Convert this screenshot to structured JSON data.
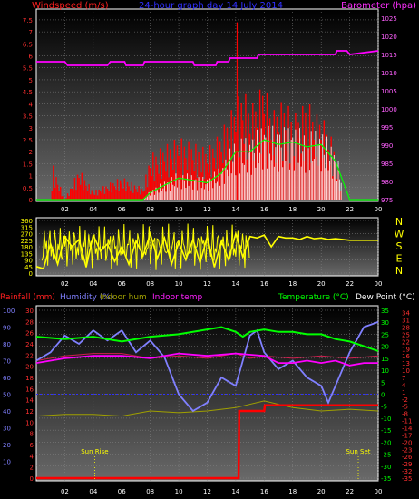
{
  "chart_data": [
    {
      "type": "line",
      "title": "24-hour graph day   14 July 2014",
      "left_axis_label": "Windspeed (m/s)",
      "right_axis_label": "Barometer (hpa)",
      "x_ticks": [
        "02",
        "04",
        "06",
        "08",
        "10",
        "12",
        "14",
        "16",
        "18",
        "20",
        "22",
        "00"
      ],
      "left_ticks": [
        "0",
        "0.5",
        "1",
        "1.5",
        "2",
        "2.5",
        "3",
        "3.5",
        "4",
        "4.5",
        "5",
        "5.5",
        "6",
        "6.5",
        "7",
        "7.5"
      ],
      "right_ticks": [
        "975",
        "980",
        "985",
        "990",
        "995",
        "1000",
        "1005",
        "1010",
        "1015",
        "1020",
        "1025"
      ],
      "ylim_left": [
        0,
        7.8
      ],
      "ylim_right": [
        975,
        1025
      ],
      "colors": {
        "wind": "#ff0000",
        "gust": "#ffffff",
        "avg": "#00ff00",
        "baro": "#ff00ff"
      },
      "series": [
        {
          "name": "barometer",
          "x": [
            0,
            2,
            2.2,
            5,
            5.2,
            6.2,
            6.3,
            7.5,
            7.6,
            11,
            11.1,
            12.6,
            12.7,
            13.5,
            13.6,
            15.5,
            15.6,
            20,
            20.1,
            21,
            21.1,
            21.8,
            22,
            24
          ],
          "values": [
            1013,
            1013,
            1012,
            1012,
            1013,
            1013,
            1012,
            1012,
            1013,
            1013,
            1012,
            1012,
            1013,
            1013,
            1014,
            1014,
            1015,
            1015,
            1015,
            1015,
            1016,
            1016,
            1015,
            1016
          ]
        },
        {
          "name": "windspeed",
          "x": [
            0,
            1,
            1.2,
            2,
            3,
            4,
            6,
            7.5,
            8,
            9,
            10,
            11,
            12,
            13,
            13.5,
            14,
            14.5,
            15,
            15.5,
            16,
            16.5,
            17,
            17.5,
            18,
            18.5,
            19,
            19.5,
            20,
            20.5,
            21,
            21.5,
            22,
            24
          ],
          "values": [
            0,
            0,
            1.2,
            0,
            1.1,
            0.3,
            0.8,
            0.4,
            1.6,
            1.9,
            2.2,
            2.0,
            1.8,
            2.4,
            3.0,
            3.4,
            4.0,
            3.3,
            3.6,
            4.3,
            3.0,
            3.4,
            3.5,
            3.0,
            3.1,
            3.6,
            3.0,
            3.0,
            2.5,
            1.8,
            0,
            0,
            0
          ]
        },
        {
          "name": "avg",
          "x": [
            0,
            2,
            4,
            6,
            7.5,
            8,
            9,
            10,
            11,
            12,
            13,
            14,
            15,
            16,
            17,
            18,
            19,
            20,
            21,
            22,
            24
          ],
          "values": [
            0,
            0,
            0,
            0,
            0,
            0.3,
            0.6,
            0.9,
            0.8,
            0.7,
            1.1,
            2.0,
            2.0,
            2.5,
            2.3,
            2.4,
            2.2,
            2.3,
            1.6,
            0,
            0
          ]
        }
      ]
    },
    {
      "type": "line",
      "title": "",
      "right_axis_label": "",
      "compass_labels": [
        "N",
        "W",
        "S",
        "E",
        "N"
      ],
      "x_ticks": [
        "02",
        "04",
        "06",
        "08",
        "10",
        "12",
        "14",
        "16",
        "18",
        "20",
        "22",
        "00"
      ],
      "left_ticks": [
        "0",
        "45",
        "90",
        "135",
        "180",
        "225",
        "270",
        "315",
        "360"
      ],
      "ylim": [
        0,
        360
      ],
      "colors": {
        "direction": "#ffff00"
      },
      "series": [
        {
          "name": "wind direction",
          "x": [
            0,
            0.5,
            1,
            1.5,
            2,
            2.5,
            3,
            3.5,
            4,
            4.5,
            5,
            5.5,
            6,
            6.5,
            7,
            7.5,
            8,
            8.5,
            9,
            9.5,
            10,
            10.5,
            11,
            11.5,
            12,
            12.5,
            13,
            13.5,
            14,
            14.5,
            15,
            15.5,
            16,
            16.5,
            17,
            17.5,
            18,
            18.5,
            19,
            19.5,
            20,
            20.5,
            21,
            21.5,
            22,
            24
          ],
          "values": [
            45,
            30,
            200,
            60,
            250,
            180,
            230,
            40,
            260,
            150,
            200,
            80,
            180,
            60,
            220,
            120,
            270,
            100,
            240,
            60,
            210,
            90,
            230,
            70,
            250,
            40,
            220,
            90,
            270,
            110,
            250,
            240,
            260,
            180,
            250,
            240,
            240,
            230,
            250,
            235,
            240,
            230,
            235,
            230,
            225,
            225
          ]
        }
      ]
    },
    {
      "type": "line",
      "legend": [
        "Rainfall (mm)",
        "Humidity (%)",
        "Indoor hum",
        "Indoor temp",
        "Temperature (°C)",
        "Dew Point (°C)"
      ],
      "annotations": [
        "Sun Rise",
        "Sun Set"
      ],
      "x_ticks": [
        "02",
        "04",
        "06",
        "08",
        "10",
        "12",
        "14",
        "16",
        "18",
        "20",
        "22",
        "00"
      ],
      "rain_ticks": [
        "0",
        "2",
        "4",
        "6",
        "8",
        "10",
        "12",
        "14",
        "16",
        "18",
        "20",
        "22",
        "24",
        "26",
        "28",
        "30"
      ],
      "humidity_ticks": [
        "10",
        "20",
        "30",
        "40",
        "50",
        "60",
        "70",
        "80",
        "90",
        "100"
      ],
      "temp_ticks": [
        "35",
        "30",
        "25",
        "20",
        "15",
        "10",
        "5",
        "0",
        "-5",
        "-10",
        "-15",
        "-20",
        "-25",
        "-30",
        "-35"
      ],
      "dew_ticks": [
        "34",
        "31",
        "28",
        "25",
        "22",
        "19",
        "16",
        "13",
        "10",
        "7",
        "4",
        "1",
        "-2",
        "-5",
        "-8",
        "-11",
        "-14",
        "-17",
        "-20",
        "-23",
        "-26",
        "-29",
        "-32",
        "-35"
      ],
      "ylim_temp": [
        -35,
        35
      ],
      "ylim_humidity": [
        0,
        100
      ],
      "ylim_rain": [
        0,
        30
      ],
      "colors": {
        "rain": "#ff0000",
        "humidity": "#8080ff",
        "indoor_hum": "#a0a000",
        "indoor_temp": "#d02050",
        "temperature": "#00ff00",
        "dewpoint": "#ff00ff"
      },
      "series": [
        {
          "name": "Rainfall (mm)",
          "x": [
            0,
            14.2,
            14.25,
            16,
            16.05,
            24
          ],
          "values": [
            0,
            0,
            12,
            12,
            13,
            13
          ]
        },
        {
          "name": "Humidity (%)",
          "x": [
            0,
            1,
            2,
            3,
            4,
            5,
            6,
            7,
            8,
            9,
            10,
            11,
            12,
            13,
            14,
            15,
            15.5,
            16,
            17,
            18,
            19,
            20,
            20.5,
            21,
            22,
            23,
            24
          ],
          "values": [
            70,
            75,
            85,
            80,
            88,
            82,
            88,
            75,
            82,
            72,
            50,
            40,
            45,
            60,
            55,
            85,
            88,
            75,
            65,
            70,
            60,
            55,
            45,
            55,
            75,
            90,
            93
          ]
        },
        {
          "name": "Indoor hum",
          "x": [
            0,
            2,
            4,
            6,
            8,
            10,
            12,
            14,
            16,
            18,
            20,
            22,
            24
          ],
          "values": [
            37,
            38,
            38,
            37,
            40,
            39,
            40,
            42,
            46,
            42,
            40,
            41,
            40
          ]
        },
        {
          "name": "Indoor temp",
          "x": [
            0,
            2,
            4,
            6,
            8,
            10,
            12,
            13,
            14,
            15,
            16,
            18,
            20,
            22,
            24
          ],
          "values": [
            14,
            16,
            17,
            17,
            15,
            16,
            15,
            16,
            17,
            15,
            16,
            15,
            16,
            15,
            16
          ]
        },
        {
          "name": "Temperature (°C)",
          "x": [
            0,
            2,
            4,
            6,
            8,
            10,
            12,
            13,
            14,
            14.5,
            15,
            16,
            17,
            18,
            19,
            20,
            21,
            22,
            23,
            24
          ],
          "values": [
            24,
            23,
            24,
            22,
            24,
            25,
            27,
            28,
            26,
            24,
            26,
            27,
            26,
            26,
            25,
            25,
            23,
            22,
            20,
            18
          ]
        },
        {
          "name": "Dew Point (°C)",
          "x": [
            0,
            2,
            4,
            6,
            8,
            10,
            12,
            14,
            16,
            17,
            18,
            19,
            20,
            21,
            22,
            23,
            24
          ],
          "values": [
            13,
            15,
            16,
            16,
            15,
            17,
            16,
            17,
            16,
            13,
            13,
            14,
            13,
            14,
            12,
            13,
            13
          ]
        }
      ]
    }
  ]
}
